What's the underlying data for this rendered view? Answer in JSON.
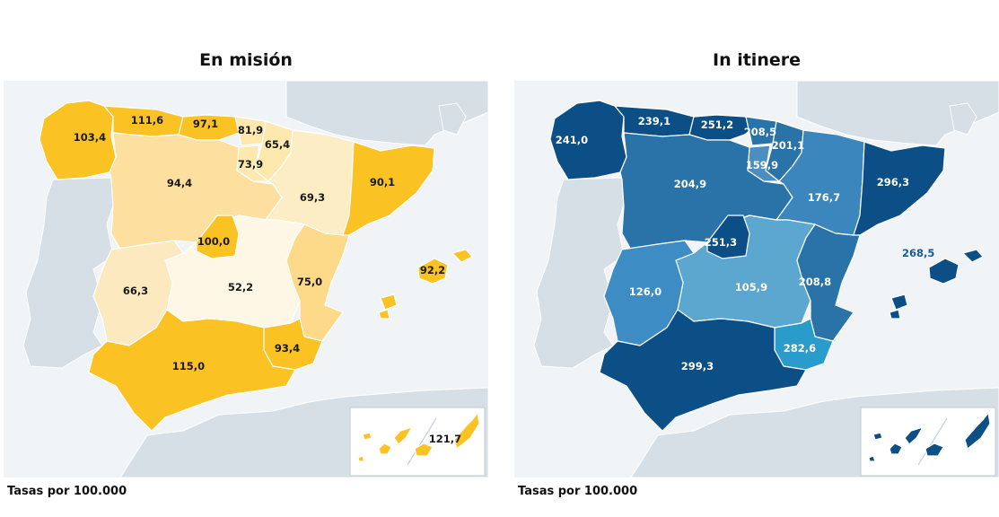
{
  "maps": [
    {
      "title": "En misión",
      "footnote": "Tasas por 100.000",
      "regions": [
        {
          "name": "galicia",
          "value": "103,4",
          "color": "#fbc224"
        },
        {
          "name": "asturias",
          "value": "111,6",
          "color": "#fbc224"
        },
        {
          "name": "cantabria",
          "value": "97,1",
          "color": "#fbc224"
        },
        {
          "name": "pais-vasco",
          "value": "81,9",
          "color": "#fde8ad"
        },
        {
          "name": "navarra",
          "value": "65,4",
          "color": "#fde8ad"
        },
        {
          "name": "la-rioja",
          "value": "73,9",
          "color": "#fde8ad"
        },
        {
          "name": "castilla-leon",
          "value": "94,4",
          "color": "#fde0a0"
        },
        {
          "name": "aragon",
          "value": "69,3",
          "color": "#fdedc4"
        },
        {
          "name": "cataluna",
          "value": "90,1",
          "color": "#fbc224"
        },
        {
          "name": "madrid",
          "value": "100,0",
          "color": "#fbc224"
        },
        {
          "name": "extremadura",
          "value": "66,3",
          "color": "#fde9c0"
        },
        {
          "name": "castilla-la-mancha",
          "value": "52,2",
          "color": "#fff7e6"
        },
        {
          "name": "valencia",
          "value": "75,0",
          "color": "#fdd98a"
        },
        {
          "name": "baleares",
          "value": "92,2",
          "color": "#fbc224"
        },
        {
          "name": "murcia",
          "value": "93,4",
          "color": "#fbc224"
        },
        {
          "name": "andalucia",
          "value": "115,0",
          "color": "#fbc224"
        },
        {
          "name": "canarias",
          "value": "121,7",
          "color": "#fbc224"
        }
      ]
    },
    {
      "title": "In itinere",
      "footnote": "Tasas por 100.000",
      "regions": [
        {
          "name": "galicia",
          "value": "241,0",
          "color": "#0c4f86"
        },
        {
          "name": "asturias",
          "value": "239,1",
          "color": "#0c4f86"
        },
        {
          "name": "cantabria",
          "value": "251,2",
          "color": "#0c4f86"
        },
        {
          "name": "pais-vasco",
          "value": "208,5",
          "color": "#2a73a8"
        },
        {
          "name": "navarra",
          "value": "201,1",
          "color": "#2a73a8"
        },
        {
          "name": "la-rioja",
          "value": "159,9",
          "color": "#4c8ec2"
        },
        {
          "name": "castilla-leon",
          "value": "204,9",
          "color": "#2a73a8"
        },
        {
          "name": "aragon",
          "value": "176,7",
          "color": "#3a86bd"
        },
        {
          "name": "cataluna",
          "value": "296,3",
          "color": "#0c4f86"
        },
        {
          "name": "madrid",
          "value": "251,3",
          "color": "#0c4f86"
        },
        {
          "name": "extremadura",
          "value": "126,0",
          "color": "#3d8cc3"
        },
        {
          "name": "castilla-la-mancha",
          "value": "105,9",
          "color": "#5ba7cf"
        },
        {
          "name": "valencia",
          "value": "208,8",
          "color": "#2a73a8"
        },
        {
          "name": "baleares",
          "value": "268,5",
          "color": "#0c4f86"
        },
        {
          "name": "murcia",
          "value": "282,6",
          "color": "#2a9ccc"
        },
        {
          "name": "andalucia",
          "value": "299,3",
          "color": "#0c4f86"
        },
        {
          "name": "canarias",
          "value": "",
          "color": "#0c4f86"
        }
      ]
    }
  ],
  "colors": {
    "sea": "#f1f4f7",
    "land_outside": "#d6dee6",
    "border": "#ffffff"
  }
}
